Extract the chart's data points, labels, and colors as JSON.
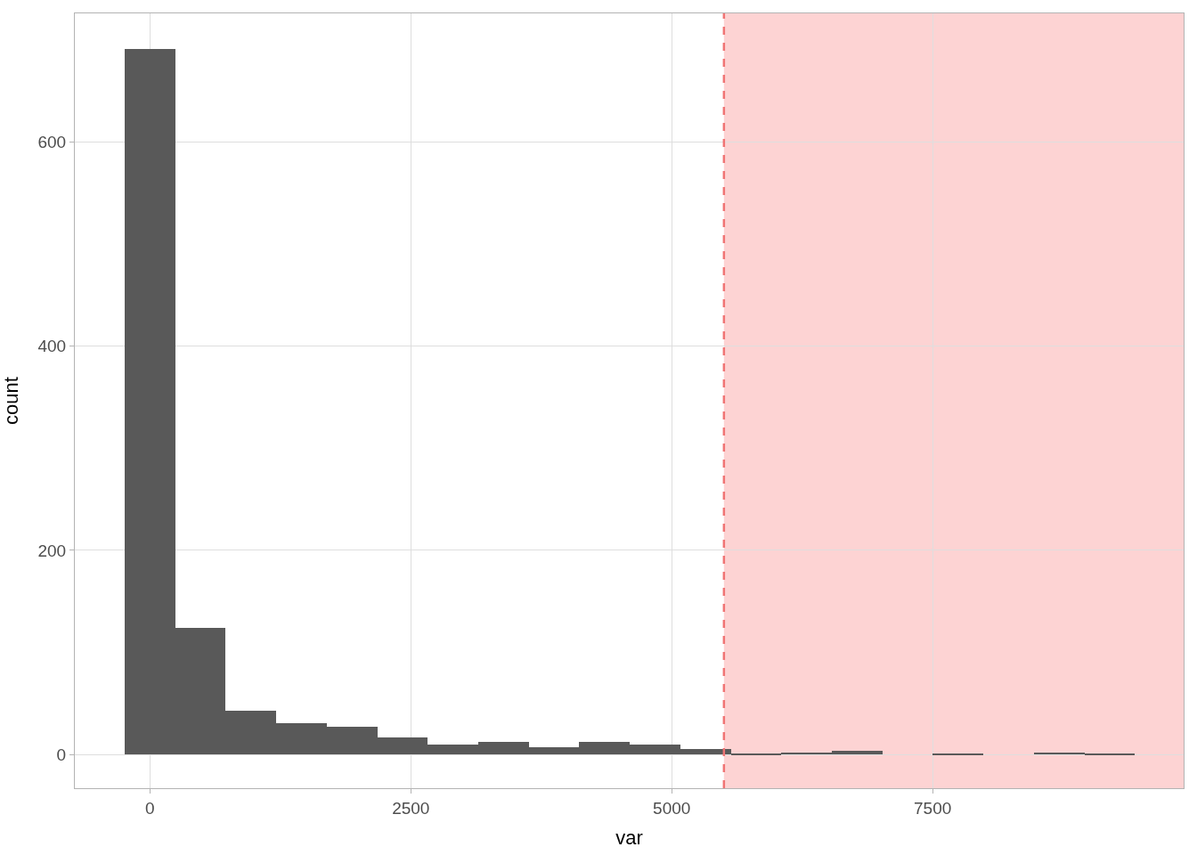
{
  "chart_data": {
    "type": "histogram",
    "xlabel": "var",
    "ylabel": "count",
    "color": "#595959",
    "bins": [
      -242,
      242,
      726,
      1210,
      1694,
      2178,
      2662,
      3146,
      3630,
      4114,
      4598,
      5082,
      5566,
      6050,
      6534,
      7018,
      7502,
      7986,
      8470,
      8954,
      9438
    ],
    "values": [
      691,
      124,
      43,
      31,
      27,
      17,
      10,
      12,
      7,
      12,
      10,
      5,
      1,
      2,
      4,
      0,
      1,
      0,
      2,
      1
    ],
    "xlim": [
      -720,
      9905
    ],
    "xticks": [
      0,
      2500,
      5000,
      7500
    ],
    "ylim": [
      -33,
      726
    ],
    "yticks": [
      0,
      200,
      400,
      600
    ],
    "grid": true,
    "ref_lines": [
      {
        "axis": "x",
        "value": 5500,
        "color": "#f07474",
        "line_style": "dashed"
      }
    ],
    "bands": [
      {
        "axis": "x",
        "from": 5500,
        "to": 9905,
        "color": "#fdd3d3"
      }
    ]
  }
}
